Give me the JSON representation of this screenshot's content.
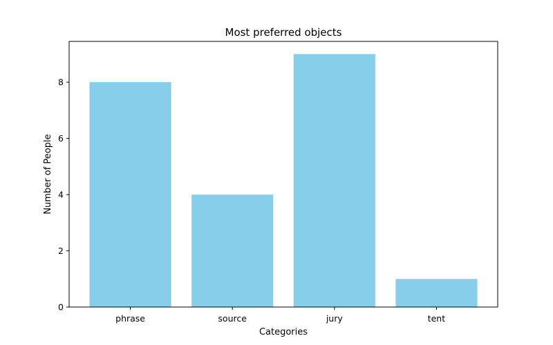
{
  "chart_data": {
    "type": "bar",
    "title": "Most preferred objects",
    "xlabel": "Categories",
    "ylabel": "Number of People",
    "categories": [
      "phrase",
      "source",
      "jury",
      "tent"
    ],
    "values": [
      8,
      4,
      9,
      1
    ],
    "ylim": [
      0,
      9.45
    ],
    "yticks": [
      0,
      2,
      4,
      6,
      8
    ],
    "bar_color": "#87CEEB",
    "grid": false
  }
}
